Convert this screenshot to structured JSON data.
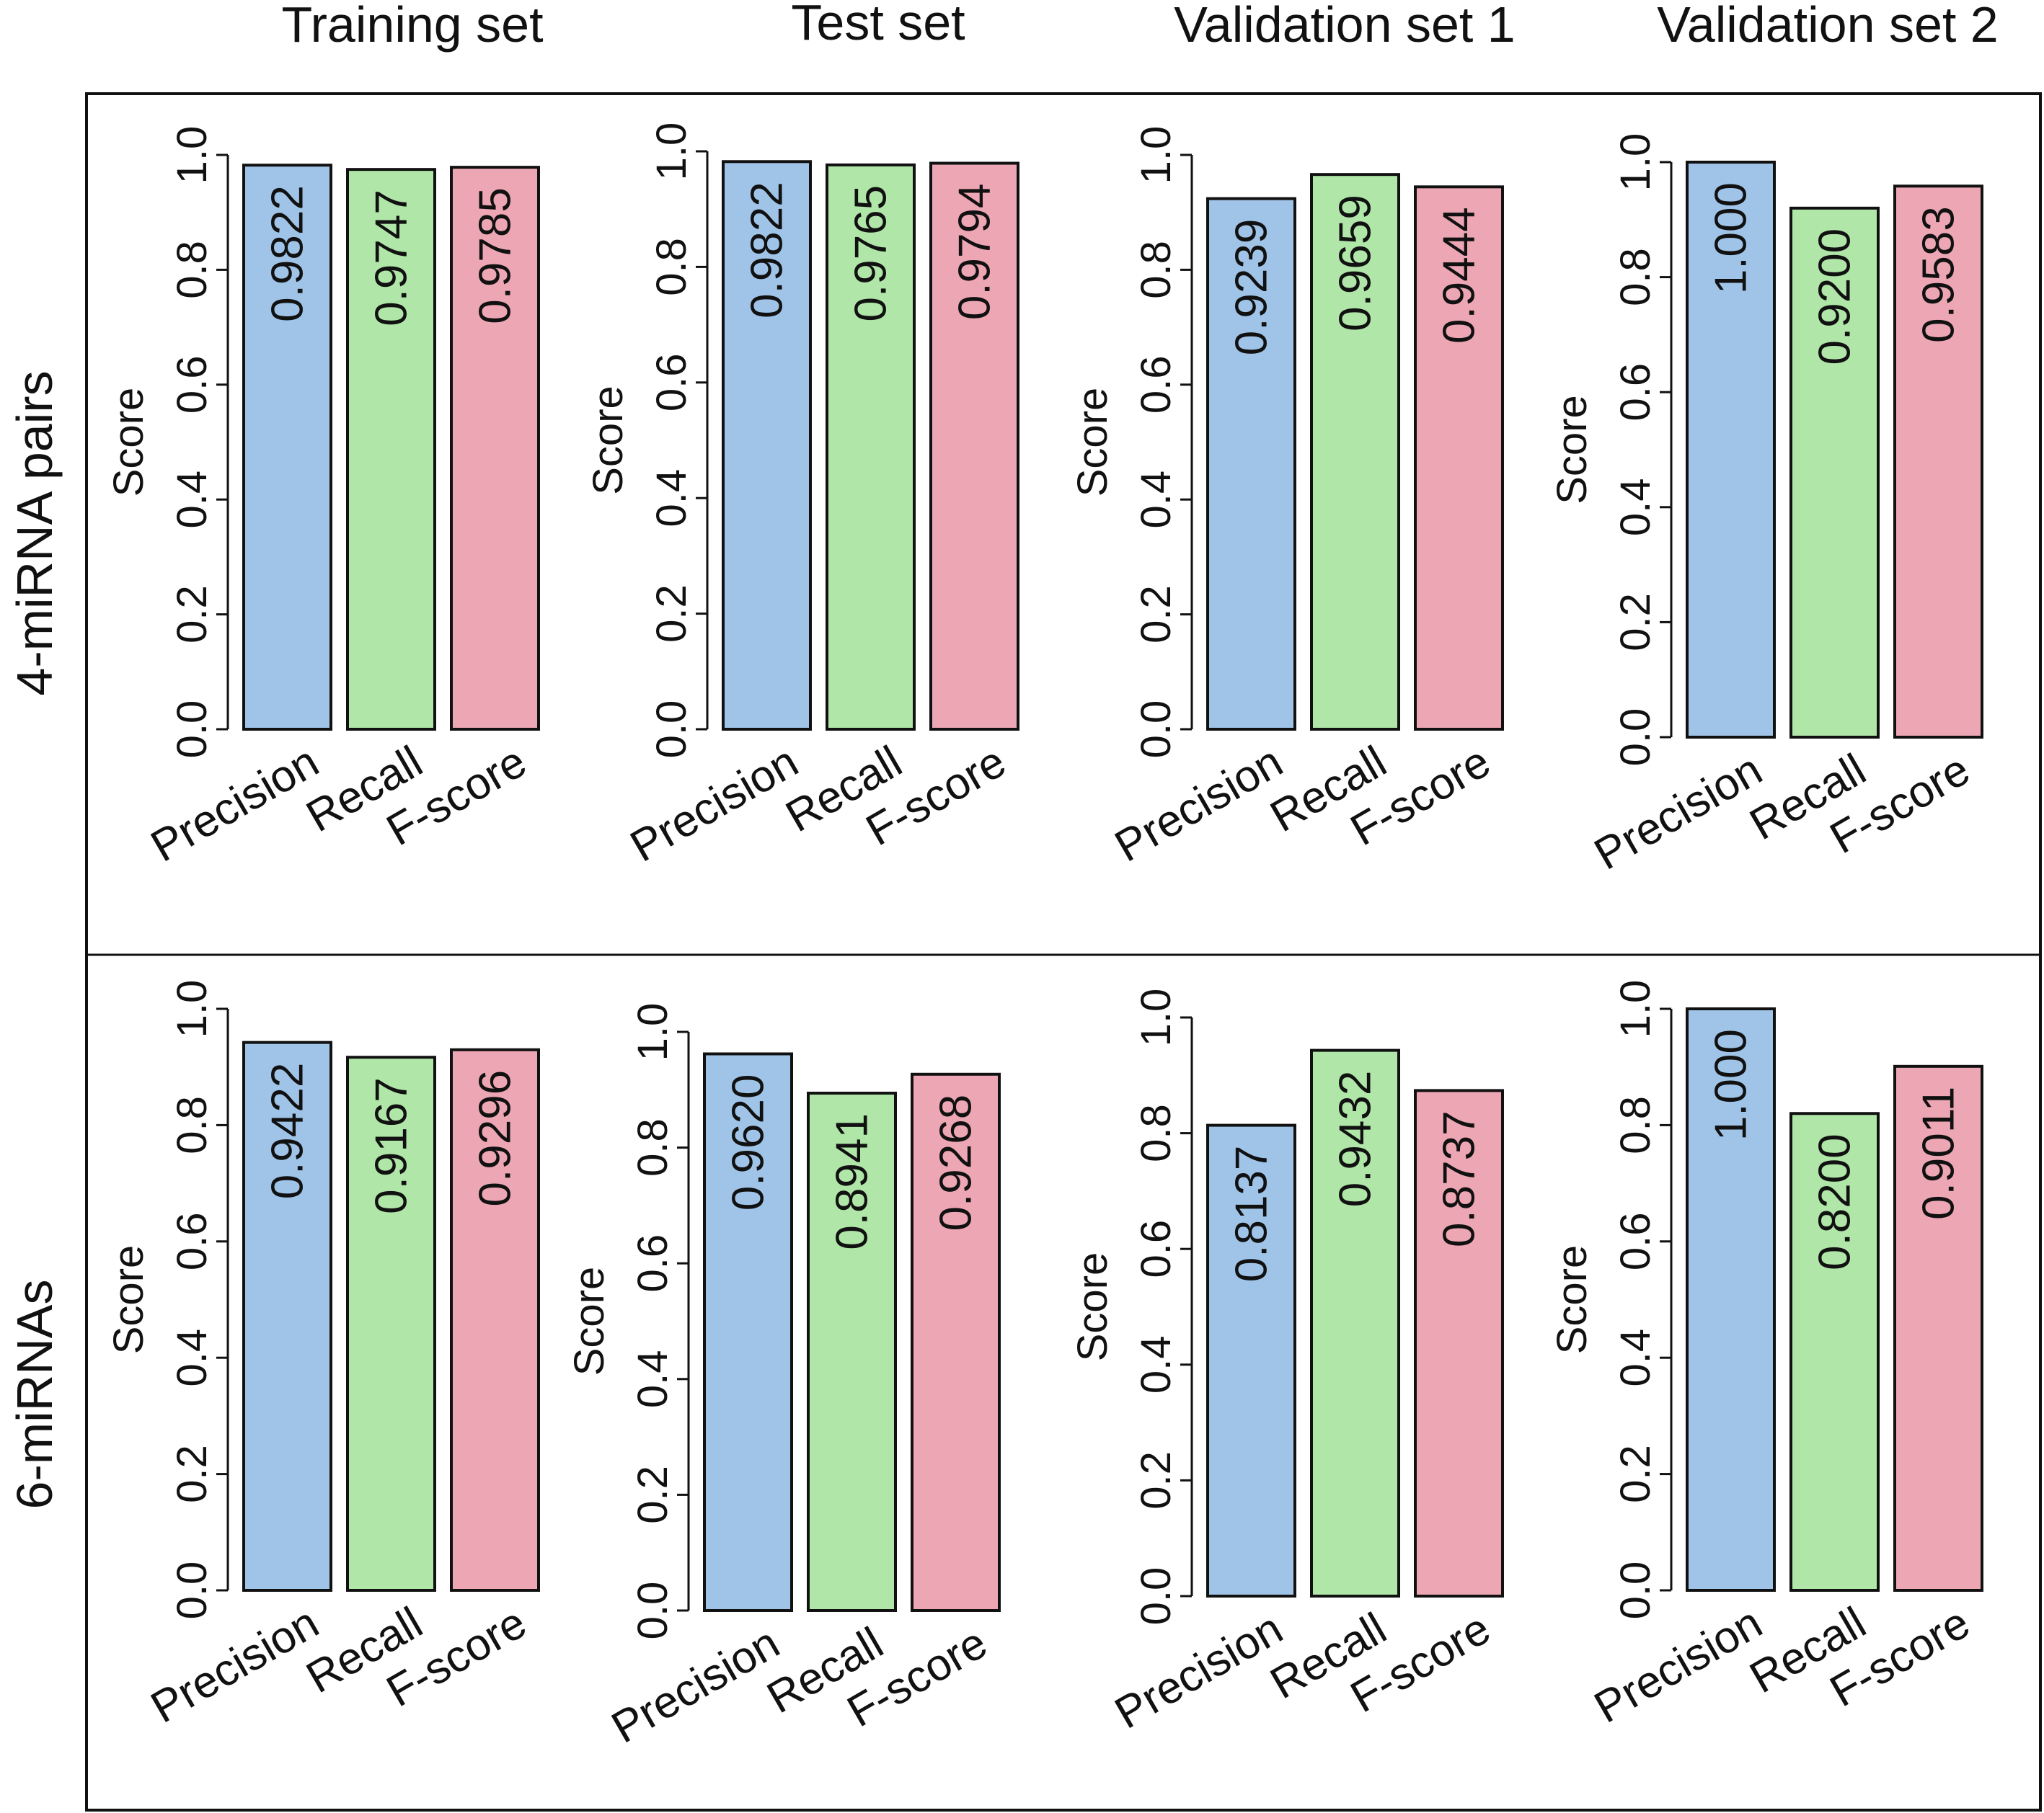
{
  "figure": {
    "column_titles": [
      "Training set",
      "Test set",
      "Validation set 1",
      "Validation set 2"
    ],
    "row_labels": [
      "4-miRNA pairs",
      "6-miRNAs"
    ]
  },
  "colors": {
    "precision": "#a0c4e8",
    "recall": "#b0e6a8",
    "fscore": "#eda7b4",
    "bar_outline": "#111111",
    "frame": "#111111"
  },
  "chart_data": [
    {
      "type": "bar",
      "title": "Training set",
      "group": "4-miRNA pairs",
      "categories": [
        "Precision",
        "Recall",
        "F-score"
      ],
      "values": [
        0.9822,
        0.9747,
        0.9785
      ],
      "labels": [
        "0.9822",
        "0.9747",
        "0.9785"
      ],
      "ylabel": "Score",
      "ylim": [
        0,
        1
      ],
      "yticks": [
        "0.0",
        "0.2",
        "0.4",
        "0.6",
        "0.8",
        "1.0"
      ]
    },
    {
      "type": "bar",
      "title": "Test set",
      "group": "4-miRNA pairs",
      "categories": [
        "Precision",
        "Recall",
        "F-score"
      ],
      "values": [
        0.9822,
        0.9765,
        0.9794
      ],
      "labels": [
        "0.9822",
        "0.9765",
        "0.9794"
      ],
      "ylabel": "Score",
      "ylim": [
        0,
        1
      ],
      "yticks": [
        "0.0",
        "0.2",
        "0.4",
        "0.6",
        "0.8",
        "1.0"
      ]
    },
    {
      "type": "bar",
      "title": "Validation set 1",
      "group": "4-miRNA pairs",
      "categories": [
        "Precision",
        "Recall",
        "F-score"
      ],
      "values": [
        0.9239,
        0.9659,
        0.9444
      ],
      "labels": [
        "0.9239",
        "0.9659",
        "0.9444"
      ],
      "ylabel": "Score",
      "ylim": [
        0,
        1
      ],
      "yticks": [
        "0.0",
        "0.2",
        "0.4",
        "0.6",
        "0.8",
        "1.0"
      ]
    },
    {
      "type": "bar",
      "title": "Validation set 2",
      "group": "4-miRNA pairs",
      "categories": [
        "Precision",
        "Recall",
        "F-score"
      ],
      "values": [
        1.0,
        0.92,
        0.9583
      ],
      "labels": [
        "1.000",
        "0.9200",
        "0.9583"
      ],
      "ylabel": "Score",
      "ylim": [
        0,
        1
      ],
      "yticks": [
        "0.0",
        "0.2",
        "0.4",
        "0.6",
        "0.8",
        "1.0"
      ]
    },
    {
      "type": "bar",
      "title": "Training set",
      "group": "6-miRNAs",
      "categories": [
        "Precision",
        "Recall",
        "F-score"
      ],
      "values": [
        0.9422,
        0.9167,
        0.9296
      ],
      "labels": [
        "0.9422",
        "0.9167",
        "0.9296"
      ],
      "ylabel": "Score",
      "ylim": [
        0,
        1
      ],
      "yticks": [
        "0.0",
        "0.2",
        "0.4",
        "0.6",
        "0.8",
        "1.0"
      ]
    },
    {
      "type": "bar",
      "title": "Test set",
      "group": "6-miRNAs",
      "categories": [
        "Precision",
        "Recall",
        "F-score"
      ],
      "values": [
        0.962,
        0.8941,
        0.9268
      ],
      "labels": [
        "0.9620",
        "0.8941",
        "0.9268"
      ],
      "ylabel": "Score",
      "ylim": [
        0,
        1
      ],
      "yticks": [
        "0.0",
        "0.2",
        "0.4",
        "0.6",
        "0.8",
        "1.0"
      ]
    },
    {
      "type": "bar",
      "title": "Validation set 1",
      "group": "6-miRNAs",
      "categories": [
        "Precision",
        "Recall",
        "F-score"
      ],
      "values": [
        0.8137,
        0.9432,
        0.8737
      ],
      "labels": [
        "0.8137",
        "0.9432",
        "0.8737"
      ],
      "ylabel": "Score",
      "ylim": [
        0,
        1
      ],
      "yticks": [
        "0.0",
        "0.2",
        "0.4",
        "0.6",
        "0.8",
        "1.0"
      ]
    },
    {
      "type": "bar",
      "title": "Validation set 2",
      "group": "6-miRNAs",
      "categories": [
        "Precision",
        "Recall",
        "F-score"
      ],
      "values": [
        1.0,
        0.82,
        0.9011
      ],
      "labels": [
        "1.000",
        "0.8200",
        "0.9011"
      ],
      "ylabel": "Score",
      "ylim": [
        0,
        1
      ],
      "yticks": [
        "0.0",
        "0.2",
        "0.4",
        "0.6",
        "0.8",
        "1.0"
      ]
    }
  ]
}
